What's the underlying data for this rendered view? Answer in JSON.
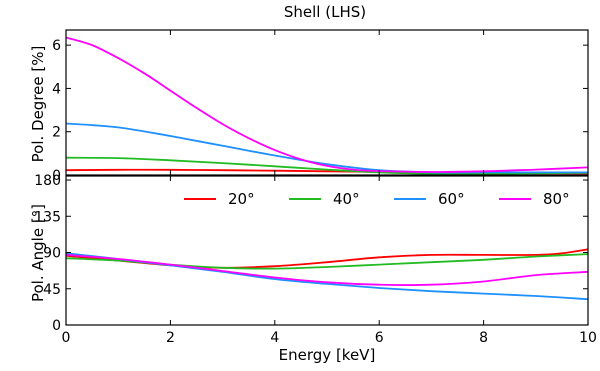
{
  "chart_data": {
    "type": "line",
    "title": "Shell (LHS)",
    "xlabel": "Energy [keV]",
    "xlim": [
      0,
      10
    ],
    "xticks": [
      0,
      2,
      4,
      6,
      8,
      10
    ],
    "grid": false,
    "panels": [
      {
        "ylabel": "Pol. Degree [%]",
        "ylim": [
          0,
          6.7
        ],
        "yticks": [
          0,
          2,
          4,
          6
        ],
        "series": [
          {
            "name": "20°",
            "color": "#ff0000",
            "x": [
              0,
              1,
              2,
              3,
              4,
              5,
              6,
              7,
              8,
              9,
              10
            ],
            "y": [
              0.22,
              0.24,
              0.24,
              0.22,
              0.2,
              0.17,
              0.14,
              0.12,
              0.1,
              0.08,
              0.07
            ]
          },
          {
            "name": "40°",
            "color": "#22bb22",
            "x": [
              0,
              1,
              2,
              3,
              4,
              5,
              6,
              7,
              8,
              9,
              10
            ],
            "y": [
              0.8,
              0.78,
              0.68,
              0.55,
              0.4,
              0.25,
              0.12,
              0.06,
              0.05,
              0.08,
              0.1
            ]
          },
          {
            "name": "60°",
            "color": "#1e90ff",
            "x": [
              0,
              1,
              2,
              3,
              4,
              5,
              6,
              7,
              8,
              9,
              10
            ],
            "y": [
              2.38,
              2.2,
              1.8,
              1.35,
              0.9,
              0.5,
              0.22,
              0.12,
              0.12,
              0.12,
              0.12
            ]
          },
          {
            "name": "80°",
            "color": "#ff00ff",
            "x": [
              0,
              0.5,
              1,
              1.5,
              2,
              2.5,
              3,
              3.5,
              4,
              4.5,
              5,
              5.5,
              6,
              7,
              8,
              9,
              10
            ],
            "y": [
              6.35,
              6.0,
              5.4,
              4.7,
              3.9,
              3.1,
              2.35,
              1.7,
              1.15,
              0.72,
              0.42,
              0.25,
              0.18,
              0.14,
              0.17,
              0.25,
              0.35
            ]
          }
        ]
      },
      {
        "ylabel": "Pol. Angle [°]",
        "ylim": [
          0,
          185
        ],
        "yticks": [
          0,
          45,
          90,
          135,
          180
        ],
        "legend": "top",
        "series": [
          {
            "name": "20°",
            "color": "#ff0000",
            "x": [
              0,
              1,
              2,
              3,
              4,
              5,
              6,
              7,
              8,
              9,
              9.5,
              10
            ],
            "y": [
              86,
              80,
              74,
              71,
              73,
              78,
              84,
              87,
              87,
              87,
              89,
              94
            ]
          },
          {
            "name": "40°",
            "color": "#22bb22",
            "x": [
              0,
              1,
              2,
              3,
              4,
              5,
              6,
              7,
              8,
              9,
              10
            ],
            "y": [
              83,
              80,
              75,
              71,
              70,
              72,
              75,
              78,
              81,
              85,
              88
            ]
          },
          {
            "name": "60°",
            "color": "#1e90ff",
            "x": [
              0,
              1,
              2,
              3,
              4,
              5,
              6,
              7,
              8,
              9,
              10
            ],
            "y": [
              89,
              82,
              74,
              66,
              57,
              51,
              46,
              42,
              39,
              36,
              32
            ]
          },
          {
            "name": "80°",
            "color": "#ff00ff",
            "x": [
              0,
              1,
              2,
              3,
              4,
              5,
              6,
              7,
              8,
              9,
              10
            ],
            "y": [
              87,
              82,
              75,
              67,
              59,
              53,
              50,
              50,
              54,
              62,
              66
            ]
          }
        ]
      }
    ]
  }
}
